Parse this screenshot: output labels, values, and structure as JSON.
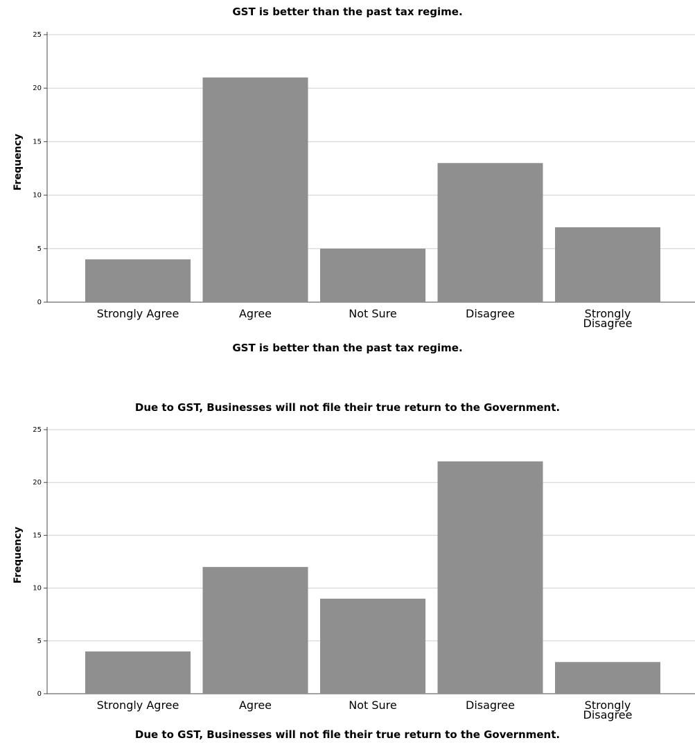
{
  "chart_data": [
    {
      "type": "bar",
      "title": "GST is better than the past tax regime.",
      "xlabel": "GST is better than the past tax regime.",
      "ylabel": "Frequency",
      "categories": [
        "Strongly Agree",
        "Agree",
        "Not Sure",
        "Disagree",
        "Strongly Disagree"
      ],
      "category_lines": [
        [
          "Strongly Agree"
        ],
        [
          "Agree"
        ],
        [
          "Not Sure"
        ],
        [
          "Disagree"
        ],
        [
          "Strongly",
          "Disagree"
        ]
      ],
      "values": [
        4,
        21,
        5,
        13,
        7
      ],
      "ylim": [
        0,
        25
      ],
      "yticks": [
        "0",
        "5",
        "10",
        "15",
        "20",
        "25"
      ],
      "grid": true,
      "bar_color": "#8f8f8f",
      "grid_color": "#d0d0d0"
    },
    {
      "type": "bar",
      "title": "Due to GST, Businesses will not file their true return to the Government.",
      "xlabel": "Due to GST, Businesses will not file their true return to the Government.",
      "ylabel": "Frequency",
      "categories": [
        "Strongly Agree",
        "Agree",
        "Not Sure",
        "Disagree",
        "Strongly Disagree"
      ],
      "category_lines": [
        [
          "Strongly Agree"
        ],
        [
          "Agree"
        ],
        [
          "Not Sure"
        ],
        [
          "Disagree"
        ],
        [
          "Strongly",
          "Disagree"
        ]
      ],
      "values": [
        4,
        12,
        9,
        22,
        3
      ],
      "ylim": [
        0,
        25
      ],
      "yticks": [
        "0",
        "5",
        "10",
        "15",
        "20",
        "25"
      ],
      "grid": true,
      "bar_color": "#8f8f8f",
      "grid_color": "#d0d0d0"
    }
  ]
}
